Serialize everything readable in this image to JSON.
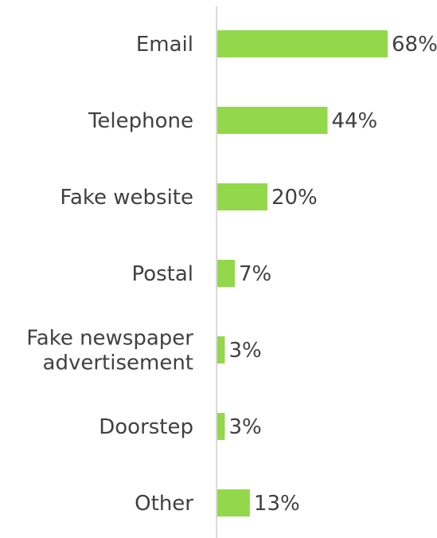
{
  "chart_data": {
    "type": "bar",
    "orientation": "horizontal",
    "categories": [
      "Email",
      "Telephone",
      "Fake website",
      "Postal",
      "Fake newspaper advertisement",
      "Doorstep",
      "Other"
    ],
    "category_lines": [
      [
        "Email"
      ],
      [
        "Telephone"
      ],
      [
        "Fake website"
      ],
      [
        "Postal"
      ],
      [
        "Fake newspaper",
        "advertisement"
      ],
      [
        "Doorstep"
      ],
      [
        "Other"
      ]
    ],
    "values": [
      68,
      44,
      20,
      7,
      3,
      3,
      13
    ],
    "value_labels": [
      "68%",
      "44%",
      "20%",
      "7%",
      "3%",
      "3%",
      "13%"
    ],
    "unit": "%",
    "xlim": [
      0,
      68
    ],
    "grid": false,
    "legend": "none",
    "bar_color": "#92d84a",
    "axis_color": "#d9d9d9",
    "text_color": "#404040"
  }
}
